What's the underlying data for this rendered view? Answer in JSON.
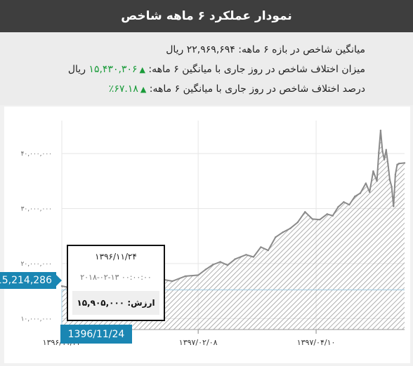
{
  "header": {
    "title": "نمودار عملکرد ۶ ماهه شاخص"
  },
  "stats": {
    "line1": {
      "label": "میانگین شاخص در بازه ۶ ماهه:",
      "value": "۲۲,۹۶۹,۶۹۴",
      "unit": "ریال"
    },
    "line2": {
      "label": "میزان اختلاف شاخص در روز جاری با میانگین ۶ ماهه:",
      "value": "۱۵,۴۳۰,۳۰۶",
      "unit": "ریال"
    },
    "line3": {
      "label": "درصد اختلاف شاخص در روز جاری با میانگین ۶ ماهه:",
      "value": "۶۷.۱۸٪"
    }
  },
  "colors": {
    "header_bg": "#3e3e3e",
    "positive": "#1a9b3a",
    "crosshair_badge": "#1a86b3",
    "area_hatch": "#9a9a9a"
  },
  "tooltip": {
    "date": "۱۳۹۶/۱۱/۲۴",
    "iso": "۲۰۱۸-۰۲-۱۳ ۰۰:۰۰:۰۰",
    "value_label": "ارزش:",
    "value": "۱۵,۹۰۵,۰۰۰"
  },
  "crosshair": {
    "y_label": "15,214,286",
    "x_label": "1396/11/24"
  },
  "chart_data": {
    "type": "area",
    "title": "",
    "xlabel": "",
    "ylabel": "",
    "yticks": [
      {
        "value": 10000000,
        "label": "۱۰,۰۰۰,۰۰۰"
      },
      {
        "value": 20000000,
        "label": "۲۰,۰۰۰,۰۰۰"
      },
      {
        "value": 30000000,
        "label": "۳۰,۰۰۰,۰۰۰"
      },
      {
        "value": 40000000,
        "label": "۴۰,۰۰۰,۰۰۰"
      }
    ],
    "xticks": [
      {
        "date": "1396/11/24",
        "label": "۱۳۹۶/۱۱/۲۴"
      },
      {
        "date": "1397/02/08",
        "label": "۱۳۹۷/۰۲/۰۸"
      },
      {
        "date": "1397/04/10",
        "label": "۱۳۹۷/۰۴/۱۰"
      }
    ],
    "ylim": [
      8000000,
      46000000
    ],
    "xlim": [
      "1396/11/24",
      "1397/05/27"
    ],
    "series": [
      {
        "values": [
          {
            "x": "1396/11/24",
            "y": 15905000
          },
          {
            "x": "1396/11/29",
            "y": 15600000
          },
          {
            "x": "1396/12/05",
            "y": 16600000
          },
          {
            "x": "1396/12/12",
            "y": 15800000
          },
          {
            "x": "1396/12/20",
            "y": 16600000
          },
          {
            "x": "1397/01/05",
            "y": 17000000
          },
          {
            "x": "1397/01/15",
            "y": 17400000
          },
          {
            "x": "1397/01/25",
            "y": 16800000
          },
          {
            "x": "1397/02/01",
            "y": 17700000
          },
          {
            "x": "1397/02/08",
            "y": 17900000
          },
          {
            "x": "1397/02/12",
            "y": 18900000
          },
          {
            "x": "1397/02/16",
            "y": 19800000
          },
          {
            "x": "1397/02/20",
            "y": 20300000
          },
          {
            "x": "1397/02/24",
            "y": 19700000
          },
          {
            "x": "1397/02/28",
            "y": 20800000
          },
          {
            "x": "1397/03/03",
            "y": 21600000
          },
          {
            "x": "1397/03/07",
            "y": 21200000
          },
          {
            "x": "1397/03/11",
            "y": 23000000
          },
          {
            "x": "1397/03/15",
            "y": 22400000
          },
          {
            "x": "1397/03/19",
            "y": 24800000
          },
          {
            "x": "1397/03/23",
            "y": 25700000
          },
          {
            "x": "1397/03/27",
            "y": 26400000
          },
          {
            "x": "1397/03/31",
            "y": 27500000
          },
          {
            "x": "1397/04/04",
            "y": 29400000
          },
          {
            "x": "1397/04/08",
            "y": 28100000
          },
          {
            "x": "1397/04/12",
            "y": 28000000
          },
          {
            "x": "1397/04/16",
            "y": 29000000
          },
          {
            "x": "1397/04/19",
            "y": 28700000
          },
          {
            "x": "1397/04/22",
            "y": 30300000
          },
          {
            "x": "1397/04/25",
            "y": 31200000
          },
          {
            "x": "1397/04/28",
            "y": 30700000
          },
          {
            "x": "1397/04/31",
            "y": 32200000
          },
          {
            "x": "1397/05/03",
            "y": 32800000
          },
          {
            "x": "1397/05/06",
            "y": 34600000
          },
          {
            "x": "1397/05/08",
            "y": 33000000
          },
          {
            "x": "1397/05/10",
            "y": 36800000
          },
          {
            "x": "1397/05/12",
            "y": 35000000
          },
          {
            "x": "1397/05/13",
            "y": 40200000
          },
          {
            "x": "1397/05/14",
            "y": 44200000
          },
          {
            "x": "1397/05/15",
            "y": 40500000
          },
          {
            "x": "1397/05/16",
            "y": 38900000
          },
          {
            "x": "1397/05/17",
            "y": 40700000
          },
          {
            "x": "1397/05/18",
            "y": 38100000
          },
          {
            "x": "1397/05/19",
            "y": 35200000
          },
          {
            "x": "1397/05/20",
            "y": 34000000
          },
          {
            "x": "1397/05/21",
            "y": 30400000
          },
          {
            "x": "1397/05/22",
            "y": 36200000
          },
          {
            "x": "1397/05/23",
            "y": 38000000
          },
          {
            "x": "1397/05/24",
            "y": 38200000
          },
          {
            "x": "1397/05/27",
            "y": 38300000
          }
        ]
      }
    ],
    "grid": true,
    "legend": "none"
  }
}
